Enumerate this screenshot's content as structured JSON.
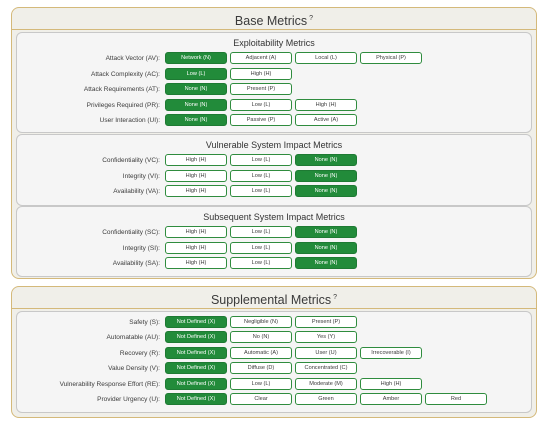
{
  "base": {
    "title": "Base Metrics",
    "title_sup": "?",
    "sections": [
      {
        "title": "Exploitability Metrics",
        "rows": [
          {
            "label": "Attack Vector (AV):",
            "options": [
              "Network (N)",
              "Adjacent (A)",
              "Local (L)",
              "Physical (P)"
            ],
            "selected": 0
          },
          {
            "label": "Attack Complexity (AC):",
            "options": [
              "Low (L)",
              "High (H)"
            ],
            "selected": 0
          },
          {
            "label": "Attack Requirements (AT):",
            "options": [
              "None (N)",
              "Present (P)"
            ],
            "selected": 0
          },
          {
            "label": "Privileges Required (PR):",
            "options": [
              "None (N)",
              "Low (L)",
              "High (H)"
            ],
            "selected": 0
          },
          {
            "label": "User Interaction (UI):",
            "options": [
              "None (N)",
              "Passive (P)",
              "Active (A)"
            ],
            "selected": 0
          }
        ]
      },
      {
        "title": "Vulnerable System Impact Metrics",
        "rows": [
          {
            "label": "Confidentiality (VC):",
            "options": [
              "High (H)",
              "Low (L)",
              "None (N)"
            ],
            "selected": 2
          },
          {
            "label": "Integrity (VI):",
            "options": [
              "High (H)",
              "Low (L)",
              "None (N)"
            ],
            "selected": 2
          },
          {
            "label": "Availability (VA):",
            "options": [
              "High (H)",
              "Low (L)",
              "None (N)"
            ],
            "selected": 2
          }
        ]
      },
      {
        "title": "Subsequent System Impact Metrics",
        "rows": [
          {
            "label": "Confidentiality (SC):",
            "options": [
              "High (H)",
              "Low (L)",
              "None (N)"
            ],
            "selected": 2
          },
          {
            "label": "Integrity (SI):",
            "options": [
              "High (H)",
              "Low (L)",
              "None (N)"
            ],
            "selected": 2
          },
          {
            "label": "Availability (SA):",
            "options": [
              "High (H)",
              "Low (L)",
              "None (N)"
            ],
            "selected": 2
          }
        ]
      }
    ]
  },
  "supplemental": {
    "title": "Supplemental Metrics",
    "title_sup": "?",
    "rows": [
      {
        "label": "Safety (S):",
        "options": [
          "Not Defined (X)",
          "Negligible (N)",
          "Present (P)"
        ],
        "selected": 0
      },
      {
        "label": "Automatable (AU):",
        "options": [
          "Not Defined (X)",
          "No (N)",
          "Yes (Y)"
        ],
        "selected": 0
      },
      {
        "label": "Recovery (R):",
        "options": [
          "Not Defined (X)",
          "Automatic (A)",
          "User (U)",
          "Irrecoverable (I)"
        ],
        "selected": 0
      },
      {
        "label": "Value Density (V):",
        "options": [
          "Not Defined (X)",
          "Diffuse (D)",
          "Concentrated (C)"
        ],
        "selected": 0
      },
      {
        "label": "Vulnerability Response Effort (RE):",
        "options": [
          "Not Defined (X)",
          "Low (L)",
          "Moderate (M)",
          "High (H)"
        ],
        "selected": 0
      },
      {
        "label": "Provider Urgency (U):",
        "options": [
          "Not Defined (X)",
          "Clear",
          "Green",
          "Amber",
          "Red"
        ],
        "selected": 0
      }
    ]
  },
  "colors": {
    "selected": "#228b3a",
    "border": "#2f8c3e",
    "panel_border": "#d4b97a"
  }
}
